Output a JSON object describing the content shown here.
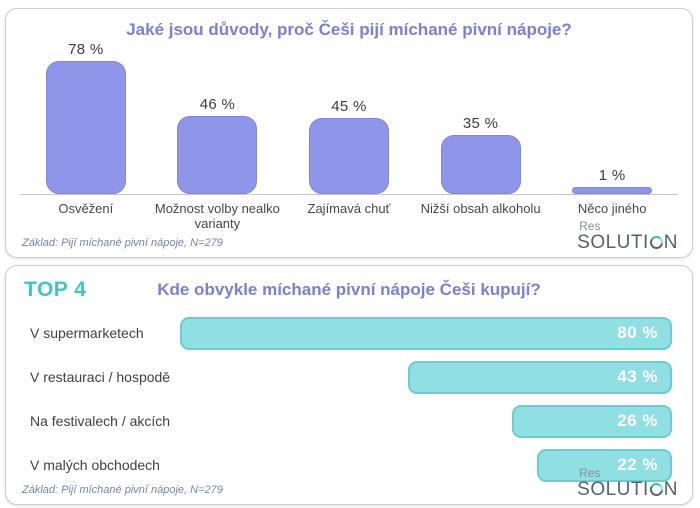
{
  "brand": {
    "line1": "Res",
    "line2_before_o": "SOLUTI",
    "line2_after_o": "N"
  },
  "chart_data": [
    {
      "type": "bar",
      "orientation": "vertical",
      "title": "Jaké jsou důvody, proč Češi pijí míchané pivní nápoje?",
      "title_color": "#7a7fd8",
      "bar_color": "#8f96e9",
      "bar_border_color": "#7e85de",
      "categories": [
        "Osvěžení",
        "Možnost volby nealko varianty",
        "Zajímavá chuť",
        "Nižší obsah alkoholu",
        "Něco jiného"
      ],
      "values": [
        78,
        46,
        45,
        35,
        1
      ],
      "value_labels": [
        "78 %",
        "46 %",
        "45 %",
        "35 %",
        "1 %"
      ],
      "ylim": [
        0,
        100
      ],
      "grid": false,
      "legend": false,
      "basis_note": "Základ: Pijí míchané pivní nápoje, N=279"
    },
    {
      "type": "bar",
      "orientation": "horizontal",
      "bars_right_aligned": true,
      "badge": "TOP 4",
      "badge_color": "#41c5c7",
      "title": "Kde obvykle míchané pivní nápoje Češi kupují?",
      "title_color": "#7a7fd8",
      "bar_color": "#90dfe3",
      "bar_border_color": "#6cccd3",
      "value_text_color": "#ffffff",
      "categories": [
        "V supermarketech",
        "V restauraci / hospodě",
        "Na festivalech / akcích",
        "V malých obchodech"
      ],
      "values": [
        80,
        43,
        26,
        22
      ],
      "value_labels": [
        "80 %",
        "43 %",
        "26 %",
        "22 %"
      ],
      "xmax_display": 80,
      "grid": false,
      "legend": false,
      "basis_note": "Základ: Pijí míchané pivní nápoje, N=279"
    }
  ]
}
